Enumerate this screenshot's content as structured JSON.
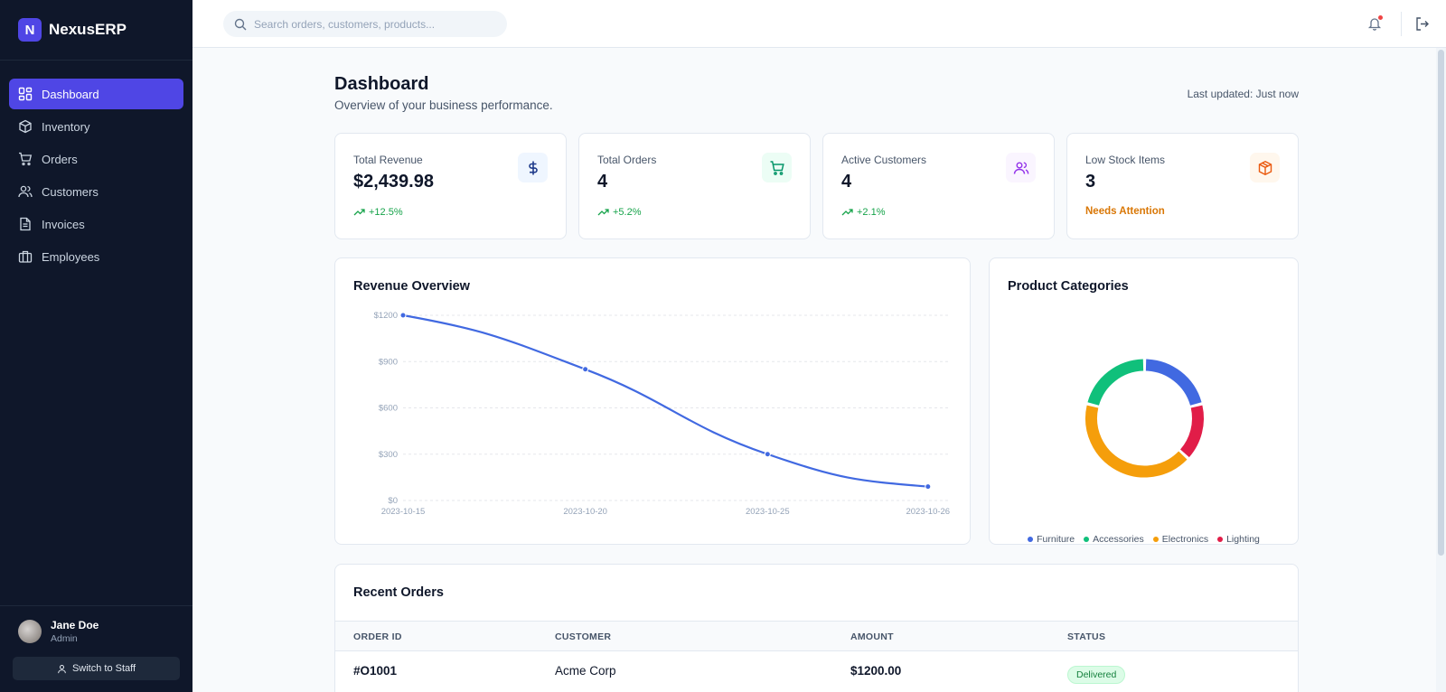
{
  "app": {
    "name": "NexusERP",
    "badge": "N"
  },
  "sidebar": {
    "items": [
      {
        "label": "Dashboard",
        "icon": "grid-icon",
        "active": true
      },
      {
        "label": "Inventory",
        "icon": "box-icon"
      },
      {
        "label": "Orders",
        "icon": "cart-icon"
      },
      {
        "label": "Customers",
        "icon": "users-icon"
      },
      {
        "label": "Invoices",
        "icon": "file-icon"
      },
      {
        "label": "Employees",
        "icon": "briefcase-icon"
      }
    ],
    "user": {
      "name": "Jane Doe",
      "role": "Admin",
      "switch_label": "Switch to Staff"
    }
  },
  "topbar": {
    "search_placeholder": "Search orders, customers, products..."
  },
  "page": {
    "title": "Dashboard",
    "subtitle": "Overview of your business performance.",
    "last_updated": "Last updated: Just now"
  },
  "stats": [
    {
      "label": "Total Revenue",
      "value": "$2,439.98",
      "trend": "+12.5%",
      "icon": "dollar-icon",
      "color": "#1e3a8a",
      "bg": "#eff6ff"
    },
    {
      "label": "Total Orders",
      "value": "4",
      "trend": "+5.2%",
      "icon": "cart-icon",
      "color": "#059669",
      "bg": "#ecfdf5"
    },
    {
      "label": "Active Customers",
      "value": "4",
      "trend": "+2.1%",
      "icon": "users-icon",
      "color": "#9333ea",
      "bg": "#faf5ff"
    },
    {
      "label": "Low Stock Items",
      "value": "3",
      "status": "Needs Attention",
      "icon": "package-icon",
      "color": "#ea580c",
      "bg": "#fff7ed"
    }
  ],
  "revenue_card": {
    "title": "Revenue Overview"
  },
  "categories_card": {
    "title": "Product Categories"
  },
  "chart_data": [
    {
      "type": "line",
      "title": "Revenue Overview",
      "x": [
        "2023-10-15",
        "2023-10-20",
        "2023-10-25",
        "2023-10-26"
      ],
      "series": [
        {
          "values": [
            1200,
            850,
            300,
            90
          ],
          "color": "#4169e1"
        }
      ],
      "yticks": [
        "$0",
        "$300",
        "$600",
        "$900",
        "$1200"
      ],
      "ylim": [
        0,
        1200
      ],
      "grid": true
    },
    {
      "type": "pie",
      "title": "Product Categories",
      "categories": [
        "Furniture",
        "Accessories",
        "Electronics",
        "Lighting"
      ],
      "values": [
        1,
        1,
        2,
        0.75
      ],
      "colors": [
        "#4169e1",
        "#10c07b",
        "#f59e0b",
        "#e11d48"
      ],
      "legend": "bottom"
    }
  ],
  "orders": {
    "title": "Recent Orders",
    "columns": [
      "ORDER ID",
      "CUSTOMER",
      "AMOUNT",
      "STATUS"
    ],
    "rows": [
      {
        "id": "#O1001",
        "customer": "Acme Corp",
        "amount": "$1200.00",
        "status": "Delivered"
      }
    ]
  }
}
